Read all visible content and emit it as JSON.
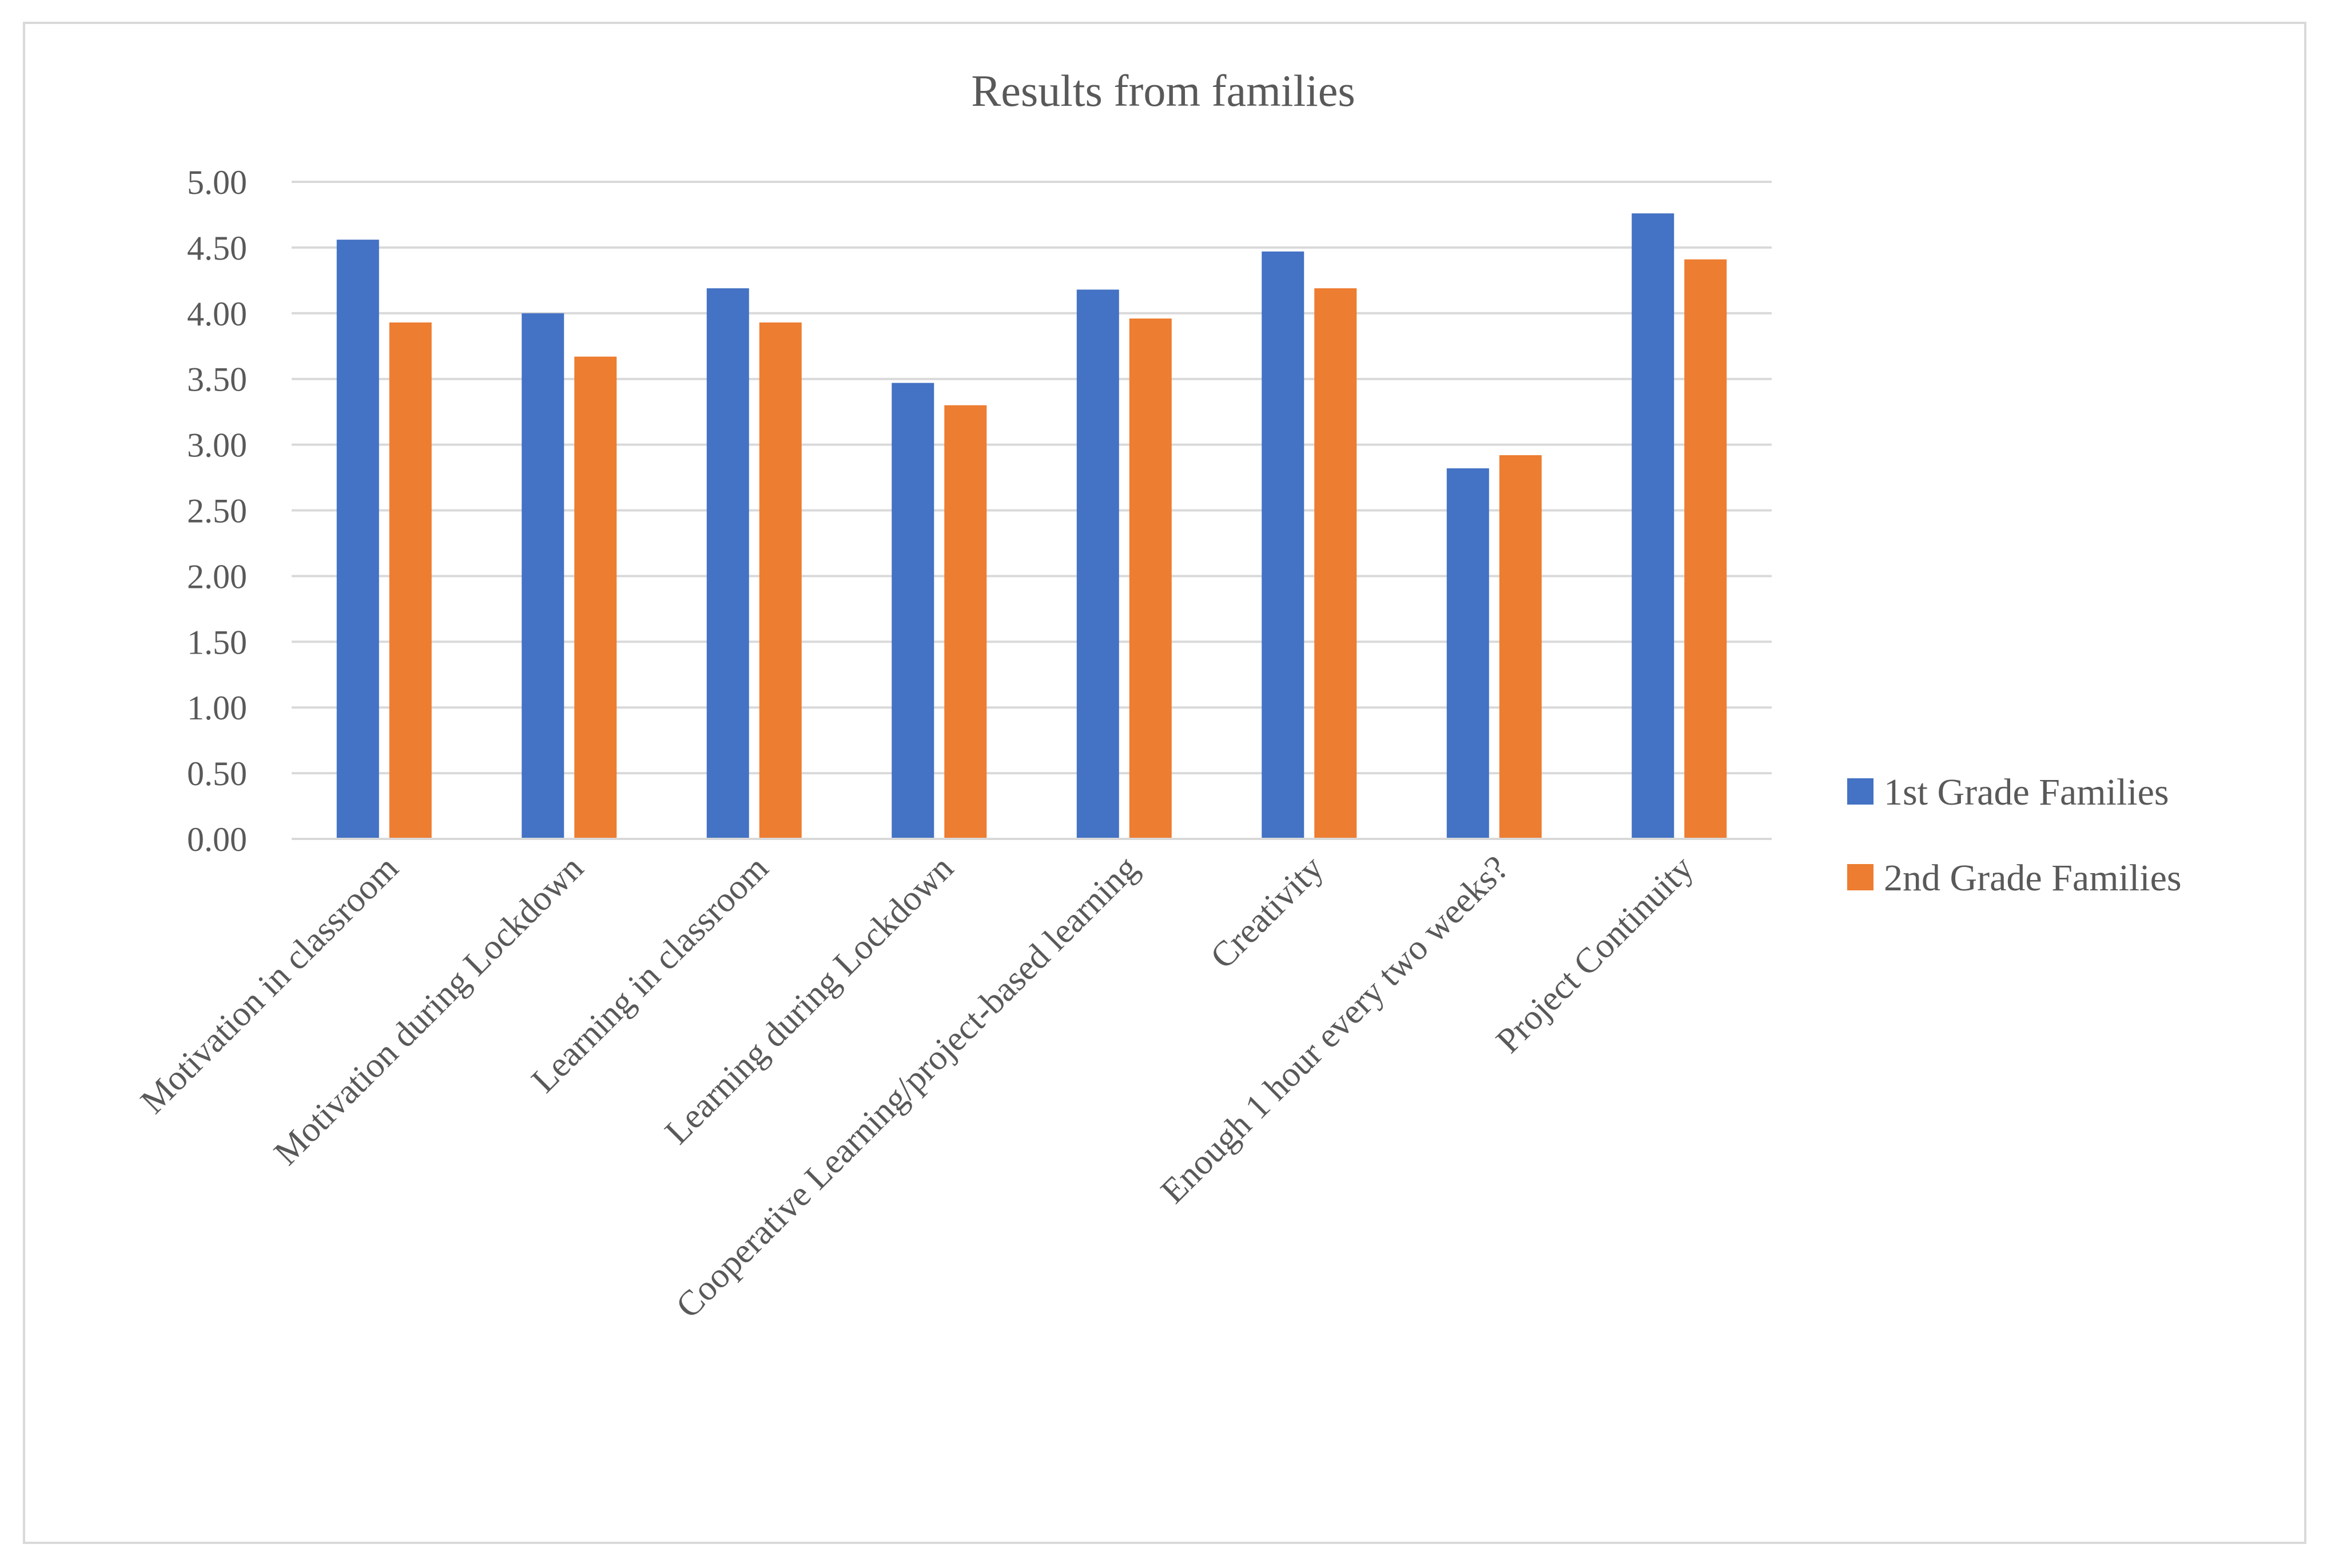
{
  "chart_data": {
    "type": "bar",
    "title": "Results from families",
    "xlabel": "",
    "ylabel": "",
    "ylim": [
      0,
      5
    ],
    "ytick_step": 0.5,
    "ytick_labels": [
      "0.00",
      "0.50",
      "1.00",
      "1.50",
      "2.00",
      "2.50",
      "3.00",
      "3.50",
      "4.00",
      "4.50",
      "5.00"
    ],
    "grid": true,
    "legend_position": "right",
    "categories": [
      "Motivation in classroom",
      "Motivation during Lockdown",
      "Learning in classroom",
      "Learning during Lockdown",
      "Cooperative Learning/project-based learning",
      "Creativity",
      "Enough 1 hour every two weeks?",
      "Project Continuity"
    ],
    "series": [
      {
        "name": "1st Grade Families",
        "color": "#4472c4",
        "values": [
          4.56,
          4.0,
          4.19,
          3.47,
          4.18,
          4.47,
          2.82,
          4.76
        ]
      },
      {
        "name": "2nd Grade Families",
        "color": "#ed7d31",
        "values": [
          3.93,
          3.67,
          3.93,
          3.3,
          3.96,
          4.19,
          2.92,
          4.41
        ]
      }
    ]
  }
}
